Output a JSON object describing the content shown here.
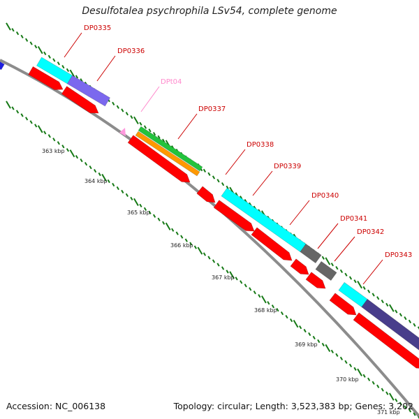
{
  "title": "Desulfotalea psychrophila LSv54, complete genome",
  "accession_label": "Accession: NC_006138",
  "summary_label": "Topology: circular; Length: 3,523,383 bp; Genes: 3,202",
  "colors": {
    "backbone": "#8c8c8c",
    "tick": "#147814",
    "cds_red": "#ff0000",
    "cyan": "#00ffff",
    "purple": "#7b68ee",
    "green": "#22c33c",
    "orange": "#ff9900",
    "gray": "#666666",
    "navy": "#483d8b",
    "blue": "#1e1ee0",
    "pink": "#ff99dd",
    "label_red": "#cc0000",
    "label_pink": "#ff88cc"
  },
  "kbp_labels": [
    "363 kbp",
    "364 kbp",
    "365 kbp",
    "366 kbp",
    "367 kbp",
    "368 kbp",
    "369 kbp",
    "370 kbp",
    "371 kbp"
  ],
  "genes": [
    {
      "label": "DP0335",
      "color": "label_red"
    },
    {
      "label": "DP0336",
      "color": "label_red"
    },
    {
      "label": "DPt04",
      "color": "label_pink"
    },
    {
      "label": "DP0337",
      "color": "label_red"
    },
    {
      "label": "DP0338",
      "color": "label_red"
    },
    {
      "label": "DP0339",
      "color": "label_red"
    },
    {
      "label": "DP0340",
      "color": "label_red"
    },
    {
      "label": "DP0341",
      "color": "label_red"
    },
    {
      "label": "DP0342",
      "color": "label_red"
    },
    {
      "label": "DP0343",
      "color": "label_red"
    }
  ]
}
